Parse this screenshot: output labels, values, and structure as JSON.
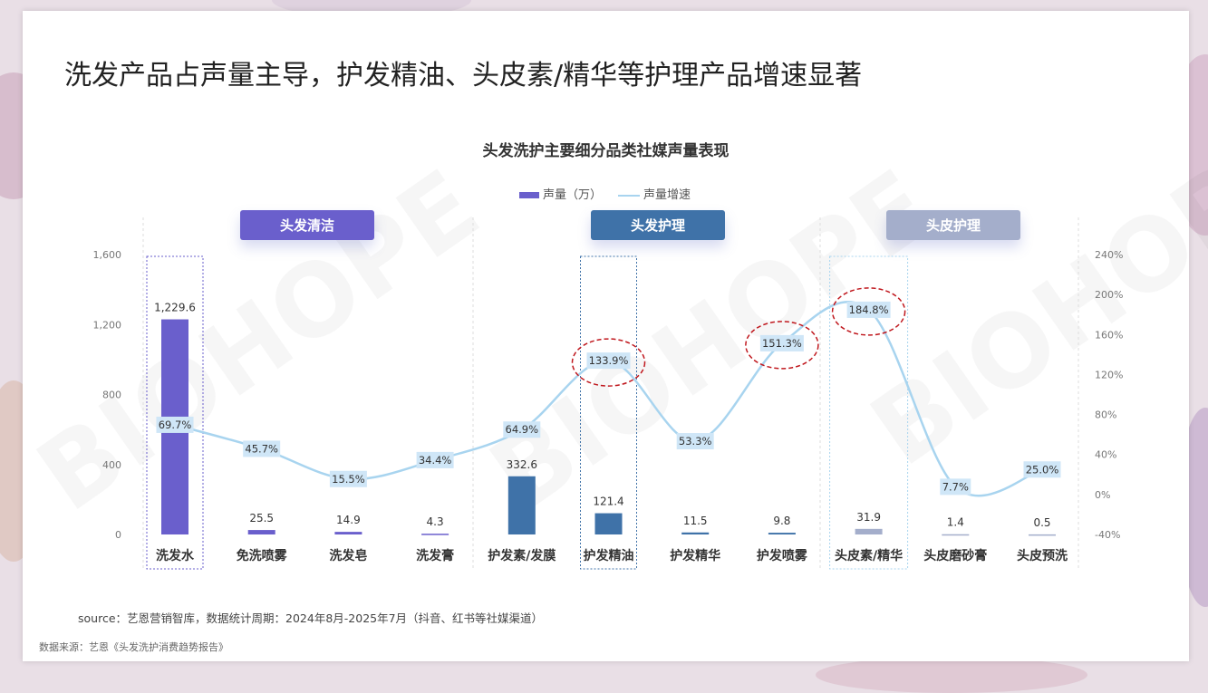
{
  "title": "洗发产品占声量主导，护发精油、头皮素/精华等护理产品增速显著",
  "source": "source：艺恩营销智库，数据统计周期：2024年8月-2025年7月（抖音、红书等社媒渠道）",
  "footnote": "数据来源：艺恩《头发洗护消费趋势报告》",
  "watermark": "BIOHOPE",
  "groups": [
    {
      "label": "头发清洁",
      "color": "#6a5fcc"
    },
    {
      "label": "头发护理",
      "color": "#3f72a8"
    },
    {
      "label": "头皮护理",
      "color": "#a4aecb"
    }
  ],
  "chart_data": {
    "type": "bar+line",
    "title": "头发洗护主要细分品类社媒声量表现",
    "legend": [
      "声量（万）",
      "声量增速"
    ],
    "legend_position": "top",
    "categories": [
      "洗发水",
      "免洗喷雾",
      "洗发皂",
      "洗发膏",
      "护发素/发膜",
      "护发精油",
      "护发精华",
      "护发喷雾",
      "头皮素/精华",
      "头皮磨砂膏",
      "头皮预洗"
    ],
    "series": [
      {
        "name": "声量（万）",
        "type": "bar",
        "axis": "left",
        "values": [
          1229.6,
          25.5,
          14.9,
          4.3,
          332.6,
          121.4,
          11.5,
          9.8,
          31.9,
          1.4,
          0.5
        ],
        "labels": [
          "1,229.6",
          "25.5",
          "14.9",
          "4.3",
          "332.6",
          "121.4",
          "11.5",
          "9.8",
          "31.9",
          "1.4",
          "0.5"
        ]
      },
      {
        "name": "声量增速",
        "type": "line",
        "axis": "right",
        "values": [
          69.7,
          45.7,
          15.5,
          34.4,
          64.9,
          133.9,
          53.3,
          151.3,
          184.8,
          7.7,
          25.0
        ],
        "labels": [
          "69.7%",
          "45.7%",
          "15.5%",
          "34.4%",
          "64.9%",
          "133.9%",
          "53.3%",
          "151.3%",
          "184.8%",
          "7.7%",
          "25.0%"
        ]
      }
    ],
    "bar_colors": [
      "#6a5fcc",
      "#6a5fcc",
      "#6a5fcc",
      "#6a5fcc",
      "#3f72a8",
      "#3f72a8",
      "#3f72a8",
      "#3f72a8",
      "#a4aecb",
      "#a4aecb",
      "#a4aecb"
    ],
    "line_color": "#a8d4ef",
    "y_left": {
      "range": [
        0,
        1600
      ],
      "ticks": [
        "0",
        "400",
        "800",
        "1,200",
        "1,600"
      ]
    },
    "y_right": {
      "range": [
        -40,
        240
      ],
      "ticks": [
        "-40%",
        "0%",
        "40%",
        "80%",
        "120%",
        "160%",
        "200%",
        "240%"
      ]
    },
    "highlighted_categories": [
      "洗发水",
      "护发精油",
      "头皮素/精华"
    ],
    "circled_points": [
      "护发精油",
      "护发喷雾",
      "头皮素/精华"
    ],
    "grid": false
  }
}
